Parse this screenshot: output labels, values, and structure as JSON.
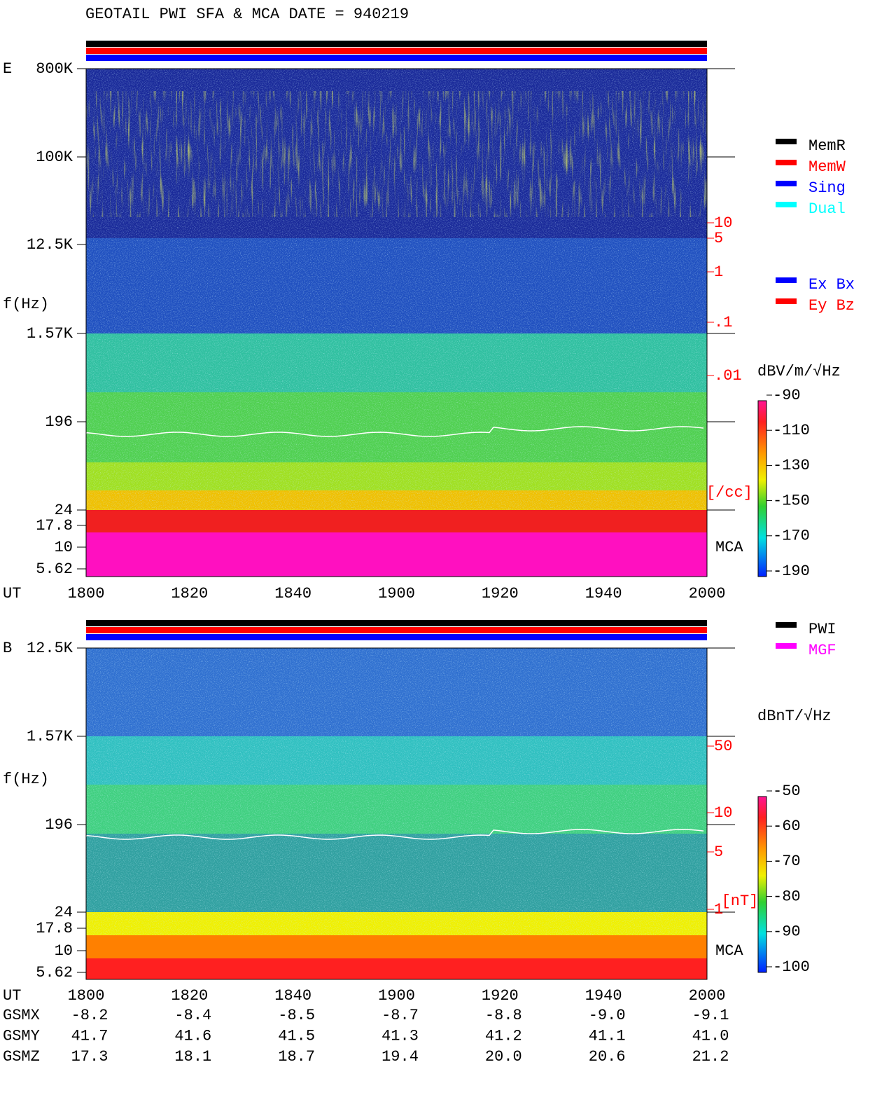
{
  "title": "GEOTAIL  PWI SFA & MCA   DATE = 940219",
  "panels": [
    {
      "label": "E",
      "ylabel": "f(Hz)",
      "yticks": [
        "800K",
        "100K",
        "12.5K",
        "1.57K",
        "196",
        "24",
        "17.8",
        "10",
        "5.62"
      ],
      "xlabel": "UT",
      "xticks": [
        "1800",
        "1820",
        "1840",
        "1900",
        "1920",
        "1940",
        "2000"
      ],
      "density_ticks": [
        "10",
        "5",
        "1",
        ".1",
        ".01"
      ],
      "density_unit": "[/cc]",
      "mca": "MCA",
      "legends": [
        [
          {
            "name": "MemR",
            "color": "#000000"
          },
          {
            "name": "MemW",
            "color": "#ff0000"
          },
          {
            "name": "Sing",
            "color": "#0000ff"
          },
          {
            "name": "Dual",
            "color": "#00ffff"
          }
        ],
        [
          {
            "name": "Ex Bx",
            "color": "#0000ff"
          },
          {
            "name": "Ey Bz",
            "color": "#ff0000"
          }
        ]
      ],
      "colorbar_unit": "dBV/m/√Hz",
      "colorbar_ticks": [
        -90,
        -110,
        -130,
        -150,
        -170,
        -190
      ]
    },
    {
      "label": "B",
      "ylabel": "f(Hz)",
      "yticks": [
        "12.5K",
        "1.57K",
        "196",
        "24",
        "17.8",
        "10",
        "5.62"
      ],
      "xlabel": "UT",
      "xticks": [
        "1800",
        "1820",
        "1840",
        "1900",
        "1920",
        "1940",
        "2000"
      ],
      "density_ticks": [
        "50",
        "10",
        "5",
        "1"
      ],
      "density_unit": "[nT]",
      "mca": "MCA",
      "legends": [
        [
          {
            "name": "PWI",
            "color": "#000000"
          },
          {
            "name": "MGF",
            "color": "#ff00ff"
          }
        ]
      ],
      "colorbar_unit": "dBnT/√Hz",
      "colorbar_ticks": [
        -50,
        -60,
        -70,
        -80,
        -90,
        -100
      ]
    }
  ],
  "orbit": [
    {
      "label": "GSMX",
      "values": [
        "-8.2",
        "-8.4",
        "-8.5",
        "-8.7",
        "-8.8",
        "-9.0",
        "-9.1"
      ]
    },
    {
      "label": "GSMY",
      "values": [
        "41.7",
        "41.6",
        "41.5",
        "41.3",
        "41.2",
        "41.1",
        "41.0"
      ]
    },
    {
      "label": "GSMZ",
      "values": [
        "17.3",
        "18.1",
        "18.7",
        "19.4",
        "20.0",
        "20.6",
        "21.2"
      ]
    }
  ]
}
